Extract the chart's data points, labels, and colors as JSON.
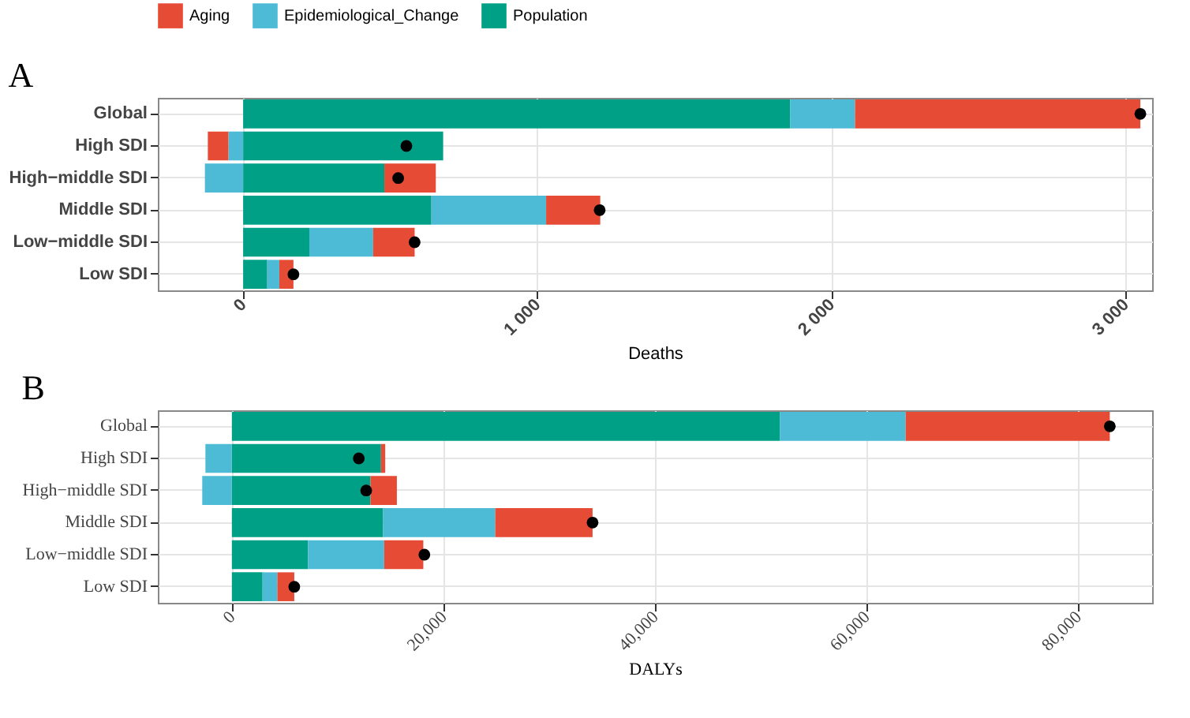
{
  "chart_data": [
    {
      "type": "bar",
      "title": "A",
      "orientation": "horizontal",
      "stacked": true,
      "xlabel": "Deaths",
      "categories": [
        "Global",
        "High SDI",
        "High−middle SDI",
        "Middle SDI",
        "Low−middle SDI",
        "Low SDI"
      ],
      "series": [
        {
          "name": "Population",
          "color": "#00a087",
          "values": [
            1860,
            680,
            480,
            640,
            225,
            82
          ]
        },
        {
          "name": "Epidemiological_Change",
          "color": "#4dbbd5",
          "values": [
            220,
            -50,
            -130,
            390,
            217,
            41
          ]
        },
        {
          "name": "Aging",
          "color": "#e64b35",
          "values": [
            970,
            -70,
            175,
            184,
            141,
            48
          ]
        },
        {
          "type": "scatter",
          "color": "#000000",
          "values": [
            3050,
            555,
            527,
            1212,
            583,
            171
          ]
        }
      ],
      "xlim": [
        -290,
        3090
      ],
      "xticks": [
        0,
        {
          "value": 1000,
          "label": "1 000"
        },
        {
          "value": 2000,
          "label": "2 000"
        },
        {
          "value": 3000,
          "label": "3 000"
        }
      ],
      "grid": true,
      "legend": "top"
    },
    {
      "type": "bar",
      "title": "B",
      "orientation": "horizontal",
      "stacked": true,
      "xlabel": "DALYs",
      "categories": [
        "Global",
        "High SDI",
        "High−middle SDI",
        "Middle SDI",
        "Low−middle SDI",
        "Low SDI"
      ],
      "series": [
        {
          "name": "Population",
          "color": "#00a087",
          "values": [
            51800,
            14100,
            13100,
            14300,
            7200,
            2900
          ]
        },
        {
          "name": "Epidemiological_Change",
          "color": "#4dbbd5",
          "values": [
            11900,
            -2500,
            -2800,
            10600,
            7200,
            1400
          ]
        },
        {
          "name": "Aging",
          "color": "#e64b35",
          "values": [
            19300,
            400,
            2500,
            9200,
            3700,
            1600
          ]
        },
        {
          "type": "scatter",
          "color": "#000000",
          "values": [
            83000,
            12000,
            12700,
            34100,
            18200,
            5900
          ]
        }
      ],
      "xlim": [
        -7000,
        87000
      ],
      "xticks": [
        0,
        {
          "value": 20000,
          "label": "20,000"
        },
        {
          "value": 40000,
          "label": "40,000"
        },
        {
          "value": 60000,
          "label": "60,000"
        },
        {
          "value": 80000,
          "label": "80,000"
        }
      ],
      "grid": true,
      "legend": false
    }
  ]
}
